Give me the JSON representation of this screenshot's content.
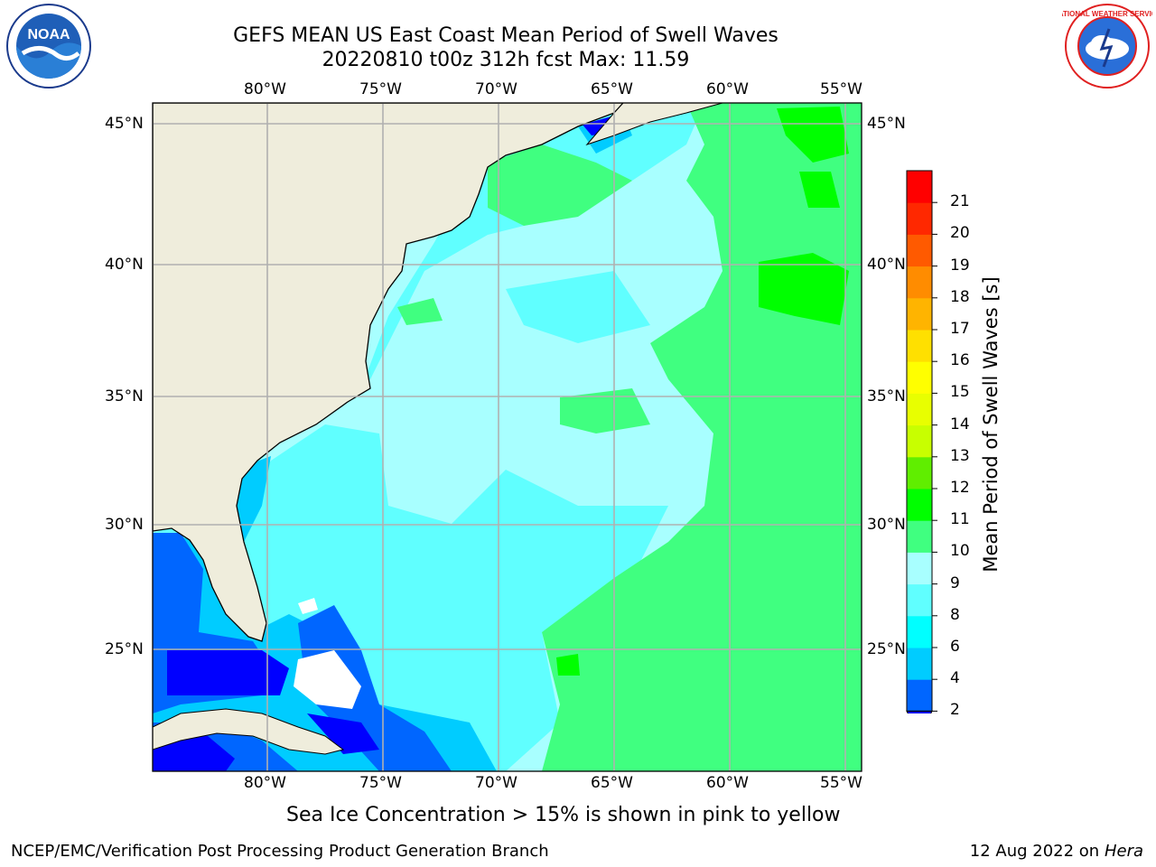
{
  "title": {
    "line1": "GEFS MEAN US East Coast Mean Period of Swell Waves",
    "line2": "20220810 t00z 312h fcst   Max: 11.59"
  },
  "logos": {
    "left": {
      "name": "noaa-logo",
      "text": "NOAA"
    },
    "right": {
      "name": "nws-logo",
      "text": "NATIONAL WEATHER SERVICE"
    }
  },
  "map": {
    "lon_labels": [
      "80°W",
      "75°W",
      "70°W",
      "65°W",
      "60°W",
      "55°W"
    ],
    "lat_labels": [
      "45°N",
      "40°N",
      "35°N",
      "30°N",
      "25°N"
    ],
    "colors": {
      "land": "#efeddc",
      "grid": "#b0b0b0",
      "ice_white": "#ffffff"
    }
  },
  "colorbar": {
    "title": "Mean Period of Swell Waves [s]",
    "ticks": [
      "2",
      "4",
      "6",
      "8",
      "9",
      "10",
      "11",
      "12",
      "13",
      "14",
      "15",
      "16",
      "17",
      "18",
      "19",
      "20",
      "21"
    ],
    "bins": [
      {
        "from": 2,
        "to": 4,
        "color": "#0066ff"
      },
      {
        "from": 4,
        "to": 6,
        "color": "#00ccff"
      },
      {
        "from": 6,
        "to": 8,
        "color": "#00ffff"
      },
      {
        "from": 8,
        "to": 9,
        "color": "#60ffff"
      },
      {
        "from": 9,
        "to": 10,
        "color": "#a8ffff"
      },
      {
        "from": 10,
        "to": 11,
        "color": "#40ff80"
      },
      {
        "from": 11,
        "to": 12,
        "color": "#00ff00"
      },
      {
        "from": 12,
        "to": 13,
        "color": "#60ee00"
      },
      {
        "from": 13,
        "to": 14,
        "color": "#c8ff00"
      },
      {
        "from": 14,
        "to": 15,
        "color": "#e8ff00"
      },
      {
        "from": 15,
        "to": 16,
        "color": "#ffff00"
      },
      {
        "from": 16,
        "to": 17,
        "color": "#ffe000"
      },
      {
        "from": 17,
        "to": 18,
        "color": "#ffb400"
      },
      {
        "from": 18,
        "to": 19,
        "color": "#ff8c00"
      },
      {
        "from": 19,
        "to": 20,
        "color": "#ff5a00"
      },
      {
        "from": 20,
        "to": 21,
        "color": "#ff2800"
      },
      {
        "from": 21,
        "to": 22,
        "color": "#ff0000"
      }
    ],
    "underflow_color": "#0000ff"
  },
  "footnote": "Sea Ice Concentration > 15% is shown in pink to yellow",
  "footer": {
    "left": "NCEP/EMC/Verification Post Processing Product Generation Branch",
    "right_date": "12 Aug 2022 on",
    "right_host": "Hera"
  }
}
